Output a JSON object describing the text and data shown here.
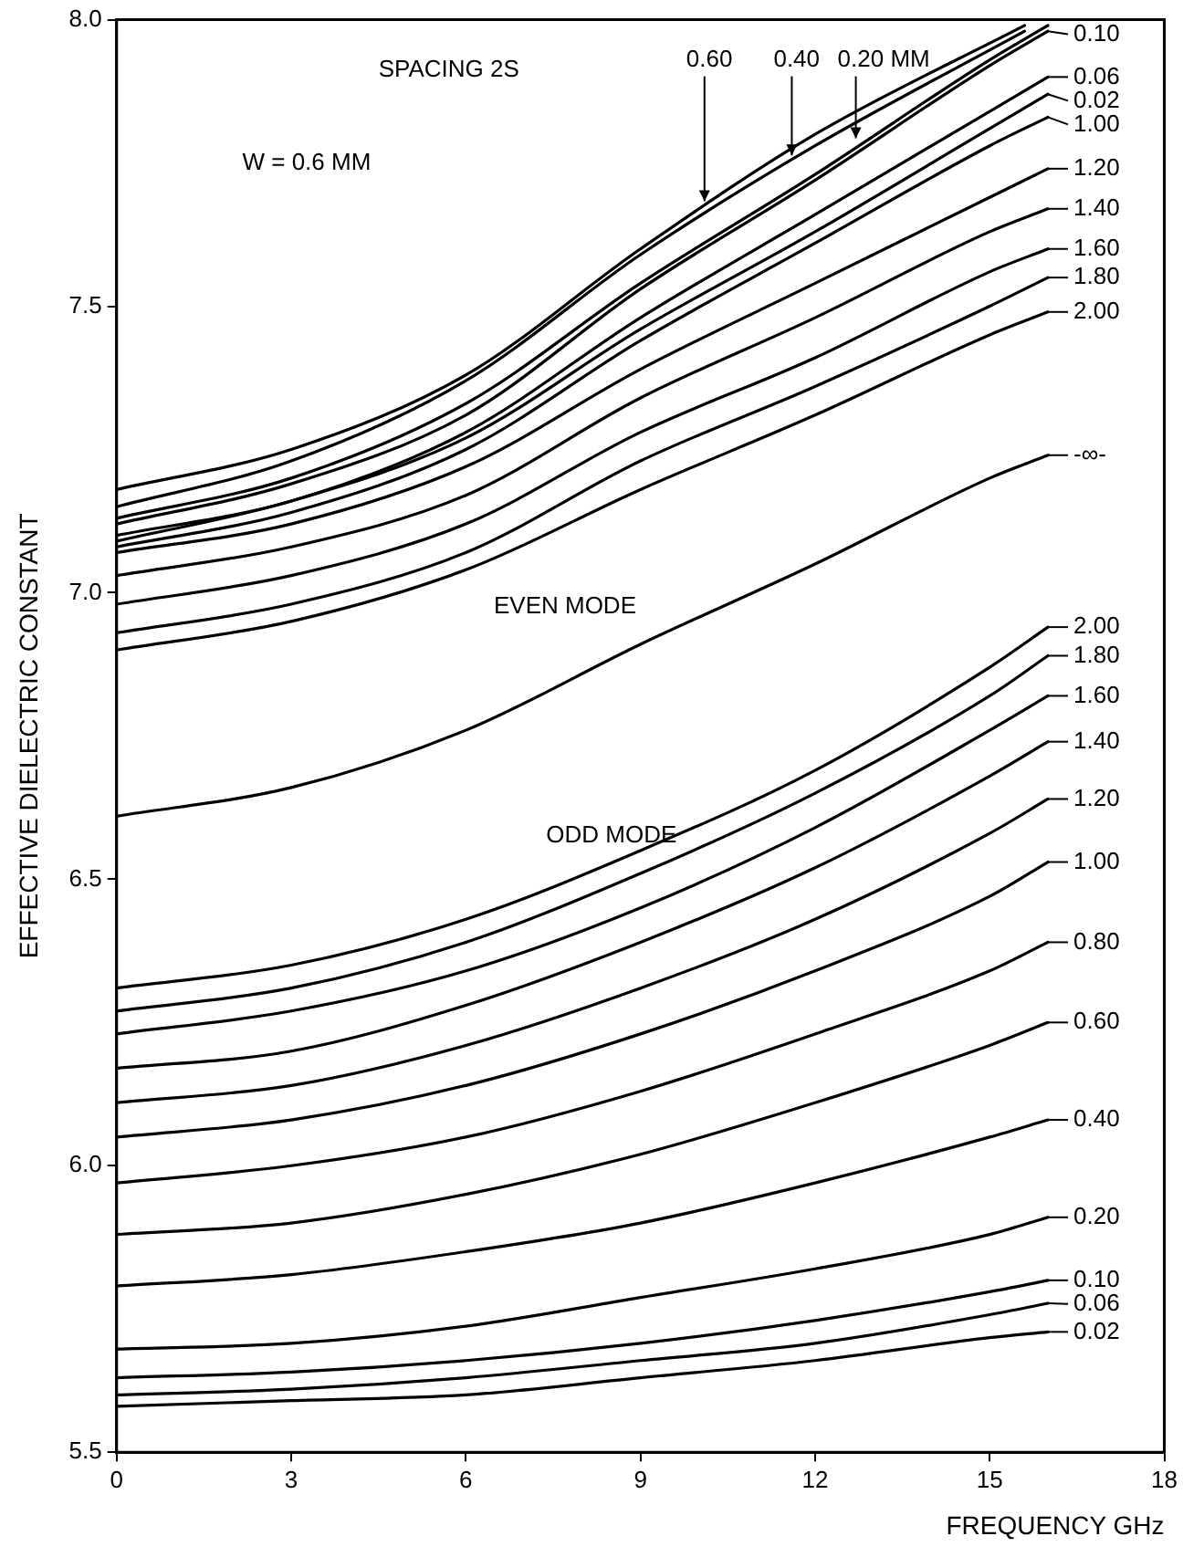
{
  "chart_data": {
    "type": "line",
    "xlabel": "FREQUENCY GHz",
    "ylabel": "EFFECTIVE DIELECTRIC CONSTANT",
    "xlim": [
      0,
      18
    ],
    "xticks": [
      0,
      3,
      6,
      9,
      12,
      15,
      18
    ],
    "ylim": [
      5.5,
      8.0
    ],
    "yticks": [
      5.5,
      {
        "value": 6,
        "label": "6.0"
      },
      6.5,
      {
        "value": 7,
        "label": "7.0"
      },
      7.5,
      {
        "value": 8,
        "label": "8.0"
      }
    ],
    "grid": false,
    "legend": "right",
    "marker": "none",
    "line_style": "solid",
    "annotations": [
      "SPACING 2S",
      "W = 0.6 MM",
      "EVEN MODE",
      "ODD MODE",
      {
        "text": "0.60",
        "x": 10.1,
        "y": 7.68
      },
      {
        "text": "0.40",
        "x": 11.6,
        "y": 7.76
      },
      {
        "text": "0.20 MM",
        "x": 12.7,
        "y": 7.79
      }
    ],
    "series": [
      {
        "color": "#000000",
        "x": [
          0,
          3,
          6,
          9,
          12,
          15.6
        ],
        "values": [
          7.18,
          7.25,
          7.38,
          7.6,
          7.8,
          7.99
        ]
      },
      {
        "color": "#000000",
        "x": [
          0,
          3,
          6,
          9,
          12,
          15.6
        ],
        "values": [
          7.15,
          7.23,
          7.37,
          7.59,
          7.78,
          7.98
        ]
      },
      {
        "color": "#000000",
        "x": [
          0,
          3,
          6,
          9,
          12,
          15,
          16
        ],
        "values": [
          7.13,
          7.2,
          7.33,
          7.54,
          7.73,
          7.93,
          7.99
        ]
      },
      {
        "name": "0.10",
        "color": "#000000",
        "x": [
          0,
          3,
          6,
          9,
          12,
          15,
          16
        ],
        "values": [
          7.12,
          7.19,
          7.31,
          7.53,
          7.72,
          7.92,
          7.98
        ]
      },
      {
        "name": "0.06",
        "color": "#000000",
        "x": [
          0,
          3,
          6,
          9,
          12,
          15,
          16
        ],
        "values": [
          7.1,
          7.16,
          7.28,
          7.48,
          7.66,
          7.84,
          7.9
        ]
      },
      {
        "name": "0.02",
        "color": "#000000",
        "x": [
          0,
          3,
          6,
          9,
          12,
          15,
          16
        ],
        "values": [
          7.09,
          7.16,
          7.27,
          7.46,
          7.63,
          7.81,
          7.87
        ]
      },
      {
        "name": "1.00",
        "color": "#000000",
        "x": [
          0,
          3,
          6,
          9,
          12,
          15,
          16
        ],
        "values": [
          7.08,
          7.14,
          7.25,
          7.44,
          7.61,
          7.78,
          7.83
        ]
      },
      {
        "name": "1.20",
        "color": "#000000",
        "x": [
          0,
          3,
          6,
          9,
          12,
          15,
          16
        ],
        "values": [
          7.07,
          7.12,
          7.22,
          7.39,
          7.54,
          7.69,
          7.74
        ]
      },
      {
        "name": "1.40",
        "color": "#000000",
        "x": [
          0,
          3,
          6,
          9,
          12,
          15,
          16
        ],
        "values": [
          7.03,
          7.08,
          7.17,
          7.34,
          7.48,
          7.63,
          7.67
        ]
      },
      {
        "name": "1.60",
        "color": "#000000",
        "x": [
          0,
          3,
          6,
          9,
          12,
          15,
          16
        ],
        "values": [
          6.98,
          7.03,
          7.12,
          7.28,
          7.41,
          7.56,
          7.6
        ]
      },
      {
        "name": "1.80",
        "color": "#000000",
        "x": [
          0,
          3,
          6,
          9,
          12,
          15,
          16
        ],
        "values": [
          6.93,
          6.98,
          7.07,
          7.23,
          7.36,
          7.5,
          7.55
        ]
      },
      {
        "name": "2.00",
        "color": "#000000",
        "x": [
          0,
          3,
          6,
          9,
          12,
          15,
          16
        ],
        "values": [
          6.9,
          6.95,
          7.04,
          7.18,
          7.31,
          7.45,
          7.49
        ]
      },
      {
        "name": "-∞-",
        "color": "#000000",
        "x": [
          0,
          3,
          6,
          9,
          12,
          15,
          16
        ],
        "values": [
          6.61,
          6.66,
          6.76,
          6.91,
          7.05,
          7.2,
          7.24
        ]
      },
      {
        "name": "2.00",
        "color": "#000000",
        "x": [
          0,
          3,
          6,
          9,
          12,
          15,
          16
        ],
        "values": [
          6.31,
          6.35,
          6.43,
          6.55,
          6.69,
          6.87,
          6.94
        ]
      },
      {
        "name": "1.80",
        "color": "#000000",
        "x": [
          0,
          3,
          6,
          9,
          12,
          15,
          16
        ],
        "values": [
          6.27,
          6.31,
          6.39,
          6.51,
          6.65,
          6.82,
          6.89
        ]
      },
      {
        "name": "1.60",
        "color": "#000000",
        "x": [
          0,
          3,
          6,
          9,
          12,
          15,
          16
        ],
        "values": [
          6.23,
          6.27,
          6.34,
          6.45,
          6.59,
          6.76,
          6.82
        ]
      },
      {
        "name": "1.40",
        "color": "#000000",
        "x": [
          0,
          3,
          6,
          9,
          12,
          15,
          16
        ],
        "values": [
          6.17,
          6.2,
          6.28,
          6.39,
          6.52,
          6.68,
          6.74
        ]
      },
      {
        "name": "1.20",
        "color": "#000000",
        "x": [
          0,
          3,
          6,
          9,
          12,
          15,
          16
        ],
        "values": [
          6.11,
          6.14,
          6.21,
          6.31,
          6.43,
          6.58,
          6.64
        ]
      },
      {
        "name": "1.00",
        "color": "#000000",
        "x": [
          0,
          3,
          6,
          9,
          12,
          15,
          16
        ],
        "values": [
          6.05,
          6.08,
          6.14,
          6.23,
          6.34,
          6.47,
          6.53
        ]
      },
      {
        "name": "0.80",
        "color": "#000000",
        "x": [
          0,
          3,
          6,
          9,
          12,
          15,
          16
        ],
        "values": [
          5.97,
          6.0,
          6.05,
          6.13,
          6.23,
          6.34,
          6.39
        ]
      },
      {
        "name": "0.60",
        "color": "#000000",
        "x": [
          0,
          3,
          6,
          9,
          12,
          15,
          16
        ],
        "values": [
          5.88,
          5.9,
          5.95,
          6.02,
          6.11,
          6.21,
          6.25
        ]
      },
      {
        "name": "0.40",
        "color": "#000000",
        "x": [
          0,
          3,
          6,
          9,
          12,
          15,
          16
        ],
        "values": [
          5.79,
          5.81,
          5.85,
          5.9,
          5.97,
          6.05,
          6.08
        ]
      },
      {
        "name": "0.20",
        "color": "#000000",
        "x": [
          0,
          3,
          6,
          9,
          12,
          15,
          16
        ],
        "values": [
          5.68,
          5.69,
          5.72,
          5.77,
          5.82,
          5.88,
          5.91
        ]
      },
      {
        "name": "0.10",
        "color": "#000000",
        "x": [
          0,
          3,
          6,
          9,
          12,
          15,
          16
        ],
        "values": [
          5.63,
          5.64,
          5.66,
          5.69,
          5.73,
          5.78,
          5.8
        ]
      },
      {
        "name": "0.06",
        "color": "#000000",
        "x": [
          0,
          3,
          6,
          9,
          12,
          15,
          16
        ],
        "values": [
          5.6,
          5.61,
          5.63,
          5.66,
          5.69,
          5.74,
          5.76
        ]
      },
      {
        "name": "0.02",
        "color": "#000000",
        "x": [
          0,
          3,
          6,
          9,
          12,
          15,
          16
        ],
        "values": [
          5.58,
          5.59,
          5.6,
          5.63,
          5.66,
          5.7,
          5.71
        ]
      }
    ]
  }
}
